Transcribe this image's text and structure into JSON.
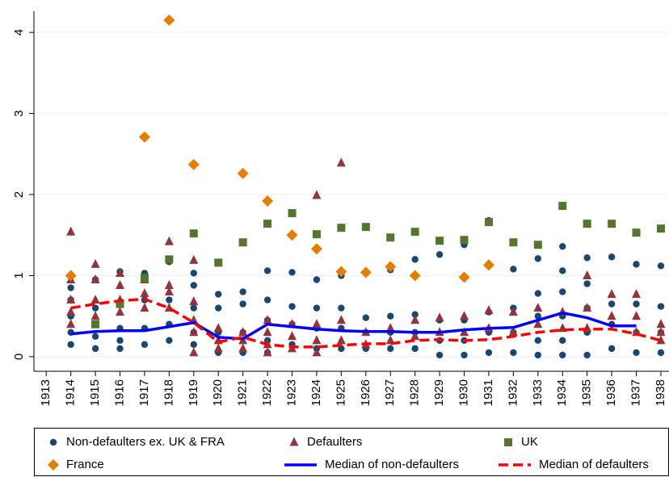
{
  "chart_data": {
    "type": "scatter",
    "xlim": [
      1912.5,
      1938.33
    ],
    "ylim": [
      -0.18,
      4.26
    ],
    "xticks": [
      1913,
      1914,
      1915,
      1916,
      1917,
      1918,
      1919,
      1920,
      1921,
      1922,
      1923,
      1924,
      1925,
      1926,
      1927,
      1928,
      1929,
      1930,
      1931,
      1932,
      1933,
      1934,
      1935,
      1936,
      1937,
      1938
    ],
    "yticks": [
      0,
      1,
      2,
      3,
      4
    ],
    "grid": true,
    "series": [
      {
        "name": "Non-defaulters ex. UK & FRA",
        "color": "#1a476f",
        "marker": "circle",
        "x": [
          1914,
          1914,
          1914,
          1914,
          1914,
          1915,
          1915,
          1915,
          1915,
          1915,
          1916,
          1916,
          1916,
          1916,
          1916,
          1917,
          1917,
          1917,
          1917,
          1918,
          1918,
          1918,
          1918,
          1919,
          1919,
          1919,
          1919,
          1919,
          1920,
          1920,
          1920,
          1920,
          1921,
          1921,
          1921,
          1921,
          1922,
          1922,
          1922,
          1922,
          1922,
          1923,
          1923,
          1923,
          1923,
          1924,
          1924,
          1924,
          1924,
          1925,
          1925,
          1925,
          1925,
          1926,
          1926,
          1926,
          1927,
          1927,
          1927,
          1927,
          1928,
          1928,
          1928,
          1928,
          1929,
          1929,
          1929,
          1929,
          1930,
          1930,
          1930,
          1930,
          1931,
          1931,
          1931,
          1931,
          1932,
          1932,
          1932,
          1932,
          1933,
          1933,
          1933,
          1933,
          1933,
          1934,
          1934,
          1934,
          1934,
          1934,
          1934,
          1935,
          1935,
          1935,
          1935,
          1935,
          1936,
          1936,
          1936,
          1936,
          1937,
          1937,
          1937,
          1937,
          1938,
          1938,
          1938,
          1938
        ],
        "values": [
          0.85,
          0.7,
          0.5,
          0.3,
          0.15,
          0.95,
          0.6,
          0.4,
          0.25,
          0.1,
          1.05,
          0.65,
          0.35,
          0.2,
          0.1,
          1.03,
          0.7,
          0.35,
          0.15,
          1.17,
          0.7,
          0.4,
          0.2,
          1.03,
          0.88,
          0.6,
          0.3,
          0.15,
          0.77,
          0.6,
          0.3,
          0.05,
          0.8,
          0.65,
          0.3,
          0.05,
          1.06,
          0.7,
          0.45,
          0.2,
          0.05,
          1.04,
          0.62,
          0.4,
          0.15,
          0.95,
          0.6,
          0.35,
          0.1,
          1.0,
          0.6,
          0.35,
          0.1,
          0.48,
          0.3,
          0.1,
          1.07,
          0.5,
          0.3,
          0.1,
          1.2,
          0.52,
          0.3,
          0.1,
          1.26,
          0.45,
          0.2,
          0.02,
          1.38,
          0.45,
          0.2,
          0.02,
          1.68,
          0.55,
          0.3,
          0.05,
          1.08,
          0.6,
          0.3,
          0.05,
          1.21,
          0.78,
          0.5,
          0.2,
          0.02,
          1.36,
          1.06,
          0.8,
          0.5,
          0.2,
          0.02,
          1.22,
          0.9,
          0.6,
          0.3,
          0.02,
          1.23,
          0.65,
          0.4,
          0.1,
          1.14,
          0.65,
          0.3,
          0.05,
          1.12,
          0.62,
          0.3,
          0.05
        ]
      },
      {
        "name": "Defaulters",
        "color": "#90353b",
        "marker": "triangle",
        "x": [
          1914,
          1914,
          1914,
          1914,
          1914,
          1915,
          1915,
          1915,
          1915,
          1916,
          1916,
          1916,
          1916,
          1917,
          1917,
          1917,
          1918,
          1918,
          1918,
          1918,
          1919,
          1919,
          1919,
          1919,
          1919,
          1920,
          1920,
          1920,
          1921,
          1921,
          1921,
          1922,
          1922,
          1922,
          1922,
          1923,
          1923,
          1923,
          1924,
          1924,
          1924,
          1924,
          1925,
          1925,
          1925,
          1926,
          1926,
          1927,
          1927,
          1928,
          1928,
          1929,
          1929,
          1930,
          1930,
          1931,
          1931,
          1932,
          1932,
          1933,
          1933,
          1934,
          1934,
          1935,
          1935,
          1935,
          1936,
          1936,
          1937,
          1937,
          1937,
          1938,
          1938,
          1938
        ],
        "values": [
          1.54,
          0.95,
          0.7,
          0.55,
          0.4,
          1.14,
          0.95,
          0.7,
          0.5,
          1.03,
          0.88,
          0.7,
          0.55,
          0.95,
          0.78,
          0.6,
          1.42,
          0.88,
          0.8,
          0.6,
          1.19,
          0.68,
          0.45,
          0.3,
          0.05,
          0.35,
          0.2,
          0.1,
          0.3,
          0.2,
          0.1,
          0.45,
          0.3,
          0.15,
          0.05,
          0.4,
          0.25,
          0.1,
          1.99,
          0.4,
          0.2,
          0.05,
          2.39,
          0.45,
          0.2,
          0.3,
          0.15,
          0.35,
          0.2,
          0.45,
          0.25,
          0.48,
          0.3,
          0.5,
          0.3,
          0.57,
          0.35,
          0.55,
          0.3,
          0.6,
          0.4,
          0.55,
          0.35,
          1.0,
          0.6,
          0.35,
          0.77,
          0.5,
          0.77,
          0.5,
          0.3,
          0.4,
          0.3,
          0.2
        ]
      },
      {
        "name": "UK",
        "color": "#55752f",
        "marker": "square",
        "x": [
          1915,
          1916,
          1917,
          1918,
          1919,
          1920,
          1921,
          1922,
          1923,
          1924,
          1925,
          1926,
          1927,
          1928,
          1929,
          1930,
          1931,
          1932,
          1933,
          1934,
          1935,
          1936,
          1937,
          1938
        ],
        "values": [
          0.4,
          0.65,
          0.97,
          1.2,
          1.52,
          1.16,
          1.41,
          1.64,
          1.77,
          1.51,
          1.59,
          1.6,
          1.47,
          1.54,
          1.43,
          1.44,
          1.66,
          1.41,
          1.38,
          1.86,
          1.64,
          1.64,
          1.53,
          1.58
        ]
      },
      {
        "name": "France",
        "color": "#e37e00",
        "marker": "diamond",
        "x": [
          1914,
          1917,
          1918,
          1919,
          1921,
          1922,
          1923,
          1924,
          1925,
          1926,
          1927,
          1928,
          1930,
          1931
        ],
        "values": [
          1.0,
          2.71,
          4.15,
          2.37,
          2.26,
          1.92,
          1.5,
          1.33,
          1.05,
          1.04,
          1.11,
          1.0,
          0.98,
          1.13
        ]
      },
      {
        "name": "Median of non-defaulters",
        "color": "#0000ff",
        "marker": "line",
        "dash": false,
        "x": [
          1914,
          1915,
          1916,
          1917,
          1918,
          1919,
          1920,
          1921,
          1922,
          1923,
          1924,
          1925,
          1926,
          1927,
          1928,
          1929,
          1930,
          1931,
          1932,
          1933,
          1934,
          1935,
          1936,
          1937
        ],
        "values": [
          0.28,
          0.31,
          0.32,
          0.32,
          0.37,
          0.42,
          0.24,
          0.22,
          0.4,
          0.37,
          0.34,
          0.32,
          0.31,
          0.31,
          0.3,
          0.3,
          0.33,
          0.35,
          0.36,
          0.45,
          0.54,
          0.48,
          0.38,
          0.38
        ]
      },
      {
        "name": "Median of defaulters",
        "color": "#ff0000",
        "marker": "line",
        "dash": true,
        "x": [
          1914,
          1915,
          1916,
          1917,
          1918,
          1919,
          1920,
          1921,
          1922,
          1923,
          1924,
          1925,
          1926,
          1927,
          1928,
          1929,
          1930,
          1931,
          1932,
          1933,
          1934,
          1935,
          1936,
          1937,
          1938
        ],
        "values": [
          0.6,
          0.65,
          0.69,
          0.71,
          0.6,
          0.42,
          0.18,
          0.24,
          0.15,
          0.12,
          0.12,
          0.14,
          0.16,
          0.16,
          0.2,
          0.21,
          0.2,
          0.21,
          0.25,
          0.3,
          0.33,
          0.34,
          0.34,
          0.28,
          0.2
        ]
      }
    ]
  }
}
